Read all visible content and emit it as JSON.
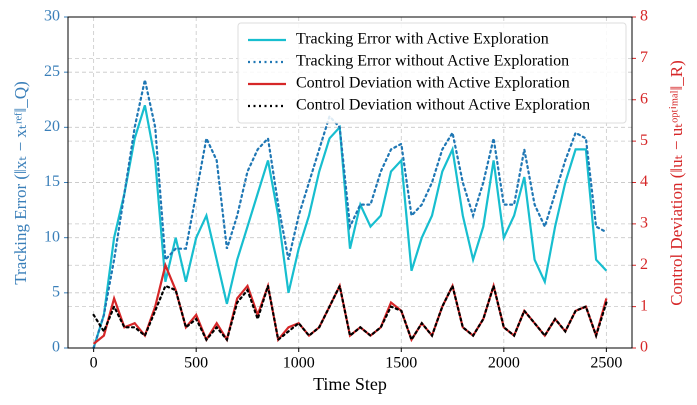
{
  "chart_data": {
    "type": "line",
    "xlabel": "Time Step",
    "ylabel": "Tracking Error (‖xₜ − xₜʳᵉᶠ‖_Q)",
    "y2label": "Control Deviation (‖uₜ − uₜᵒᵖᵗⁱᵐᵃˡ‖_R)",
    "x": [
      0,
      50,
      100,
      150,
      200,
      250,
      300,
      350,
      400,
      450,
      500,
      550,
      600,
      650,
      700,
      750,
      800,
      850,
      900,
      950,
      1000,
      1050,
      1100,
      1150,
      1200,
      1250,
      1300,
      1350,
      1400,
      1450,
      1500,
      1550,
      1600,
      1650,
      1700,
      1750,
      1800,
      1850,
      1900,
      1950,
      2000,
      2050,
      2100,
      2150,
      2200,
      2250,
      2300,
      2350,
      2400,
      2450,
      2500
    ],
    "series": [
      {
        "name": "Tracking Error with Active Exploration",
        "color": "#17becf",
        "style": "solid",
        "axis": "y",
        "values": [
          0,
          3,
          10,
          14,
          19,
          22,
          17,
          6,
          10,
          6,
          10,
          12,
          8,
          4,
          8,
          11,
          14,
          17,
          12,
          5,
          9,
          12,
          16,
          19,
          20,
          9,
          13,
          11,
          12,
          16,
          17,
          7,
          10,
          12,
          16,
          18,
          12,
          8,
          11,
          17,
          10,
          12,
          15.5,
          8,
          6,
          11,
          15,
          18,
          18,
          8,
          7
        ]
      },
      {
        "name": "Tracking Error without Active Exploration",
        "color": "#1f77b4",
        "style": "dotted",
        "axis": "y",
        "values": [
          0,
          3,
          8,
          14,
          20,
          24.3,
          20,
          8,
          9,
          9,
          14,
          19,
          17,
          9,
          12,
          16,
          18,
          19,
          13,
          8,
          12,
          15,
          18,
          21,
          20,
          11,
          13,
          13,
          16,
          18,
          18.5,
          12,
          13,
          15,
          18,
          19.5,
          15,
          12,
          15,
          19,
          13,
          13,
          18,
          13,
          11,
          14,
          17,
          19.5,
          19,
          11,
          10.5
        ]
      },
      {
        "name": "Control Deviation with Active Exploration",
        "color": "#d62728",
        "style": "solid",
        "axis": "y2",
        "values": [
          0.1,
          0.3,
          1.2,
          0.5,
          0.6,
          0.3,
          1.0,
          2.0,
          1.4,
          0.5,
          0.8,
          0.2,
          0.6,
          0.2,
          1.2,
          1.5,
          0.8,
          1.5,
          0.2,
          0.5,
          0.6,
          0.3,
          0.5,
          1.0,
          1.5,
          0.3,
          0.5,
          0.3,
          0.5,
          1.1,
          0.9,
          0.2,
          0.6,
          0.3,
          1.0,
          1.5,
          0.5,
          0.3,
          0.7,
          1.5,
          0.5,
          0.3,
          0.9,
          0.6,
          0.3,
          0.7,
          0.4,
          0.9,
          1.0,
          0.3,
          1.2
        ]
      },
      {
        "name": "Control Deviation without Active Exploration",
        "color": "#000000",
        "style": "dotted",
        "axis": "y2",
        "values": [
          0.8,
          0.4,
          1.0,
          0.5,
          0.5,
          0.3,
          0.9,
          1.5,
          1.4,
          0.5,
          0.7,
          0.2,
          0.5,
          0.2,
          1.1,
          1.4,
          0.7,
          1.5,
          0.2,
          0.4,
          0.6,
          0.3,
          0.5,
          1.0,
          1.5,
          0.3,
          0.5,
          0.3,
          0.5,
          1.0,
          0.9,
          0.2,
          0.6,
          0.3,
          1.0,
          1.5,
          0.5,
          0.3,
          0.7,
          1.5,
          0.5,
          0.3,
          0.9,
          0.6,
          0.3,
          0.7,
          0.4,
          0.9,
          1.0,
          0.3,
          1.1
        ]
      }
    ],
    "xlim": [
      -125,
      2625
    ],
    "xticks": [
      0,
      500,
      1000,
      1500,
      2000,
      2500
    ],
    "ylim": [
      0,
      30
    ],
    "yticks": [
      0,
      5,
      10,
      15,
      20,
      25,
      30
    ],
    "y2lim": [
      0,
      8
    ],
    "y2ticks": [
      0,
      1,
      2,
      3,
      4,
      5,
      6,
      7,
      8
    ],
    "ycolor": "#3a7fb9",
    "y2color": "#d62728",
    "grid": true,
    "legend": "upper right"
  }
}
